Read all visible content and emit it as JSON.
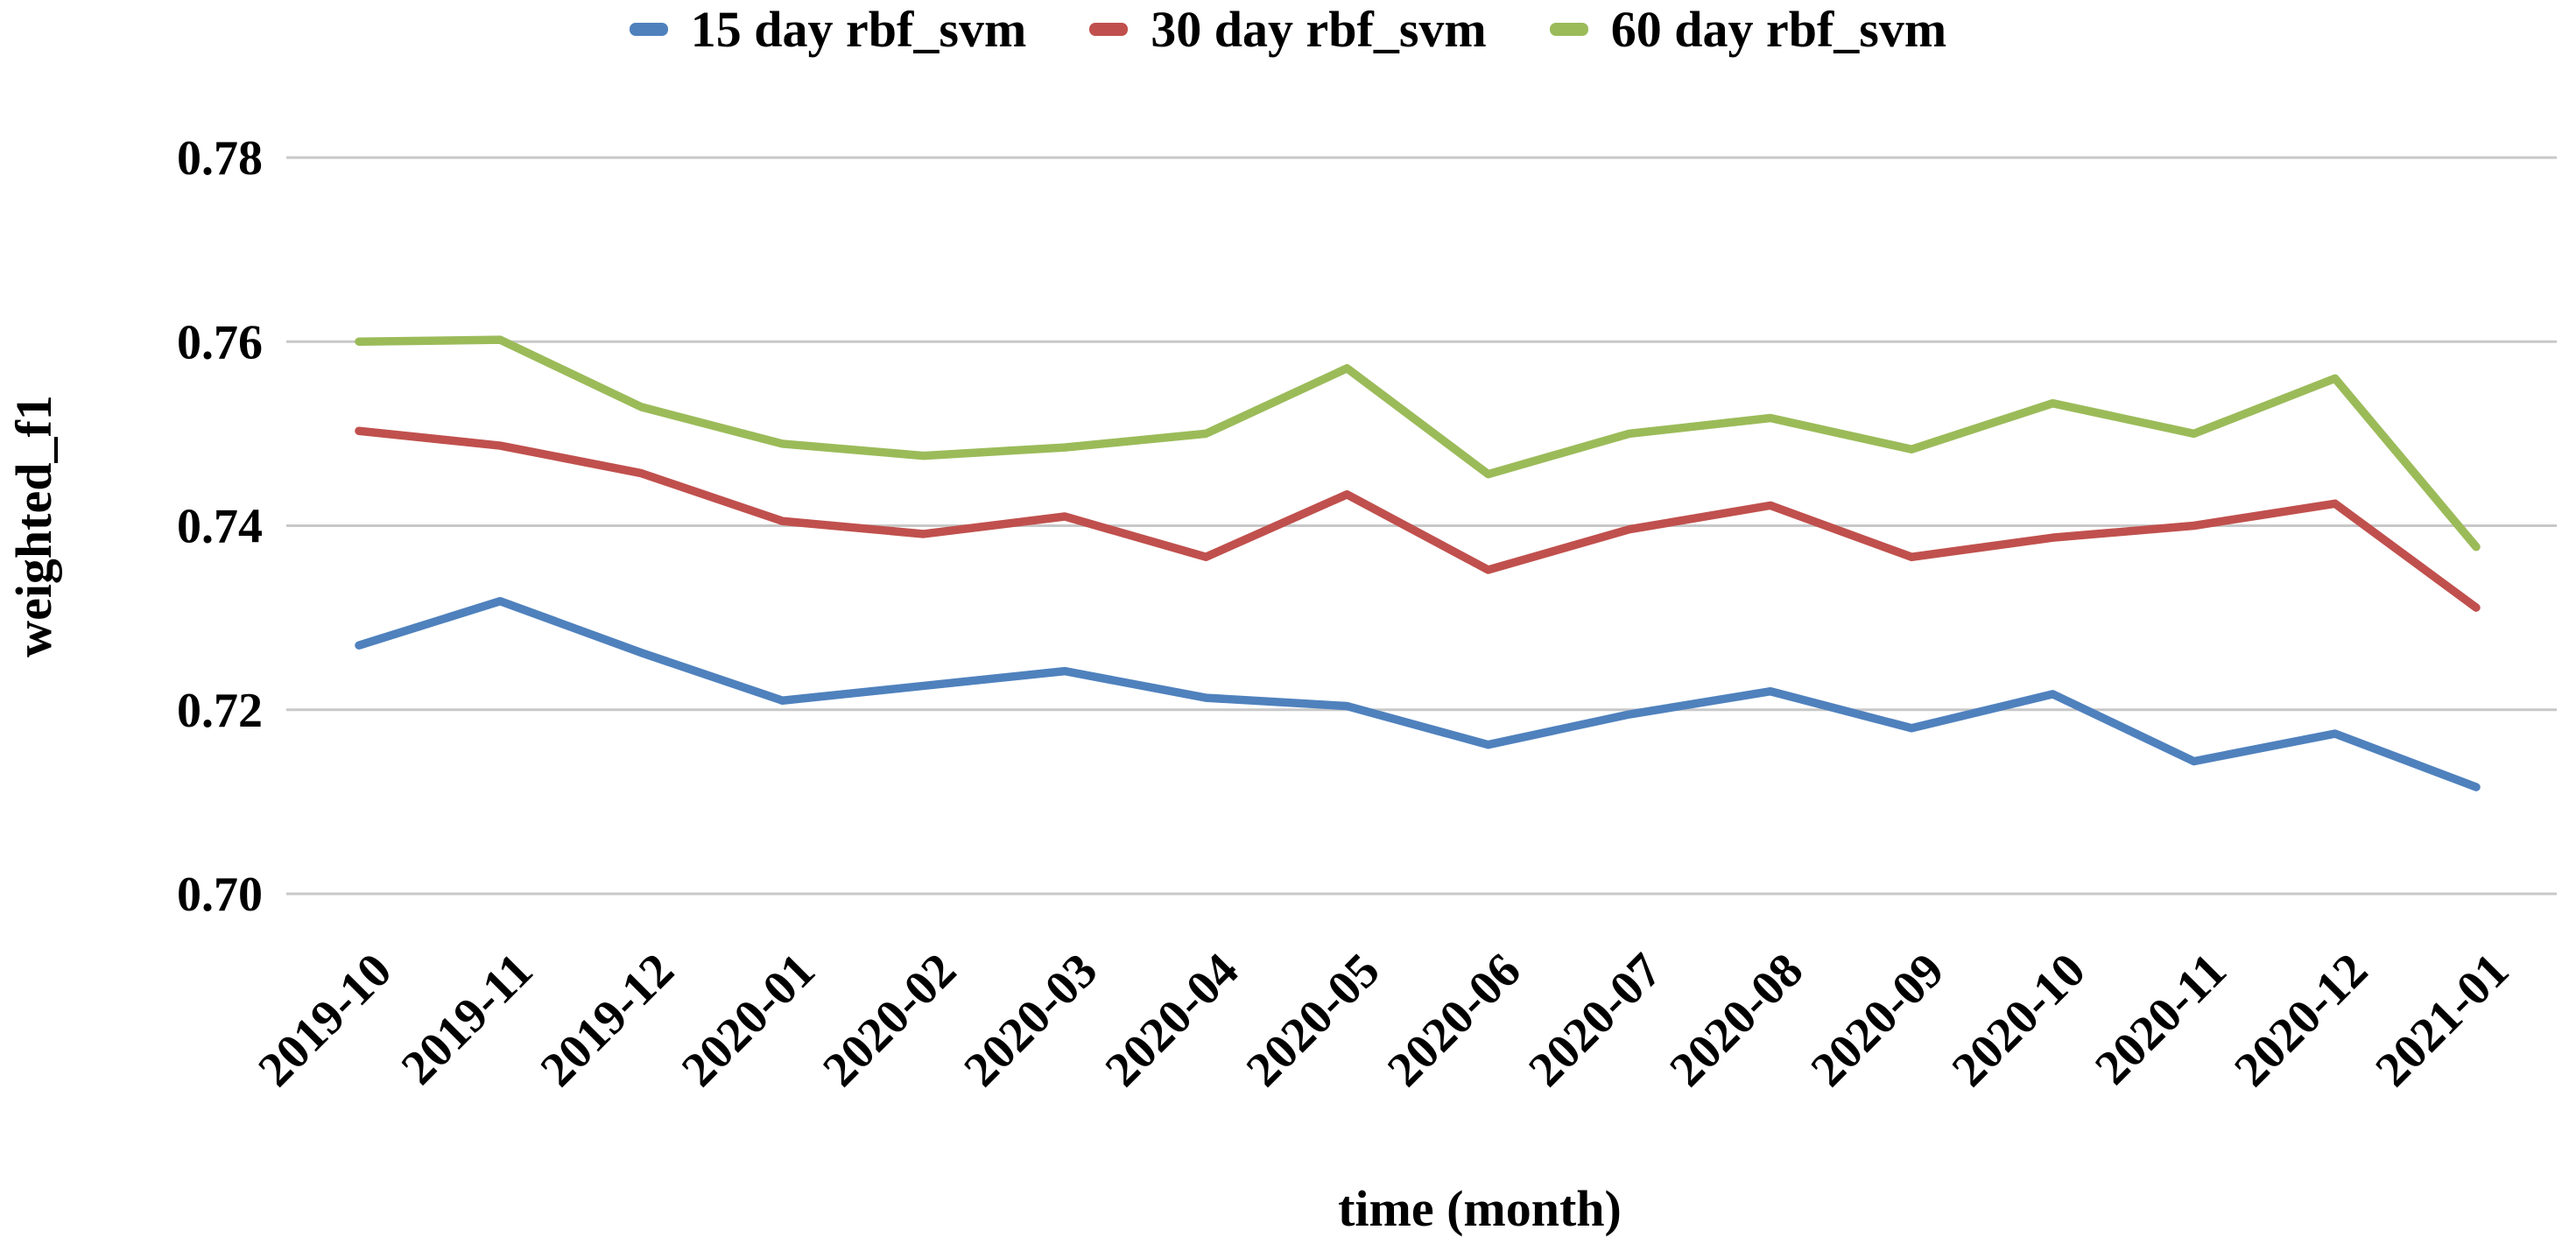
{
  "chart_data": {
    "type": "line",
    "title": "",
    "xlabel": "time (month)",
    "ylabel": "weighted_f1",
    "categories": [
      "2019-10",
      "2019-11",
      "2019-12",
      "2020-01",
      "2020-02",
      "2020-03",
      "2020-04",
      "2020-05",
      "2020-06",
      "2020-07",
      "2020-08",
      "2020-09",
      "2020-10",
      "2020-11",
      "2020-12",
      "2021-01"
    ],
    "series": [
      {
        "name": "15 day rbf_svm",
        "color": "#4F81BD",
        "values": [
          0.727,
          0.7318,
          0.7262,
          0.721,
          0.7226,
          0.7242,
          0.7213,
          0.7204,
          0.7162,
          0.7195,
          0.722,
          0.718,
          0.7217,
          0.7144,
          0.7174,
          0.7116
        ]
      },
      {
        "name": "30 day rbf_svm",
        "color": "#C0504D",
        "values": [
          0.7503,
          0.7487,
          0.7457,
          0.7405,
          0.7391,
          0.741,
          0.7366,
          0.7434,
          0.7352,
          0.7396,
          0.7422,
          0.7366,
          0.7387,
          0.74,
          0.7424,
          0.7311
        ]
      },
      {
        "name": "60 day rbf_svm",
        "color": "#9BBB59",
        "values": [
          0.76,
          0.7602,
          0.7529,
          0.7489,
          0.7476,
          0.7485,
          0.75,
          0.7571,
          0.7456,
          0.75,
          0.7517,
          0.7483,
          0.7533,
          0.75,
          0.756,
          0.7377
        ]
      }
    ],
    "ylim": [
      0.7,
      0.78
    ],
    "yticks": [
      0.78,
      0.76,
      0.74,
      0.72,
      0.7
    ],
    "ytick_labels": [
      "0.78",
      "0.76",
      "0.74",
      "0.72",
      "0.70"
    ],
    "grid": true,
    "legend_position": "top",
    "gridline_color": "#C8C8C8",
    "text_color": "#000000",
    "background_color": "#FFFFFF"
  }
}
